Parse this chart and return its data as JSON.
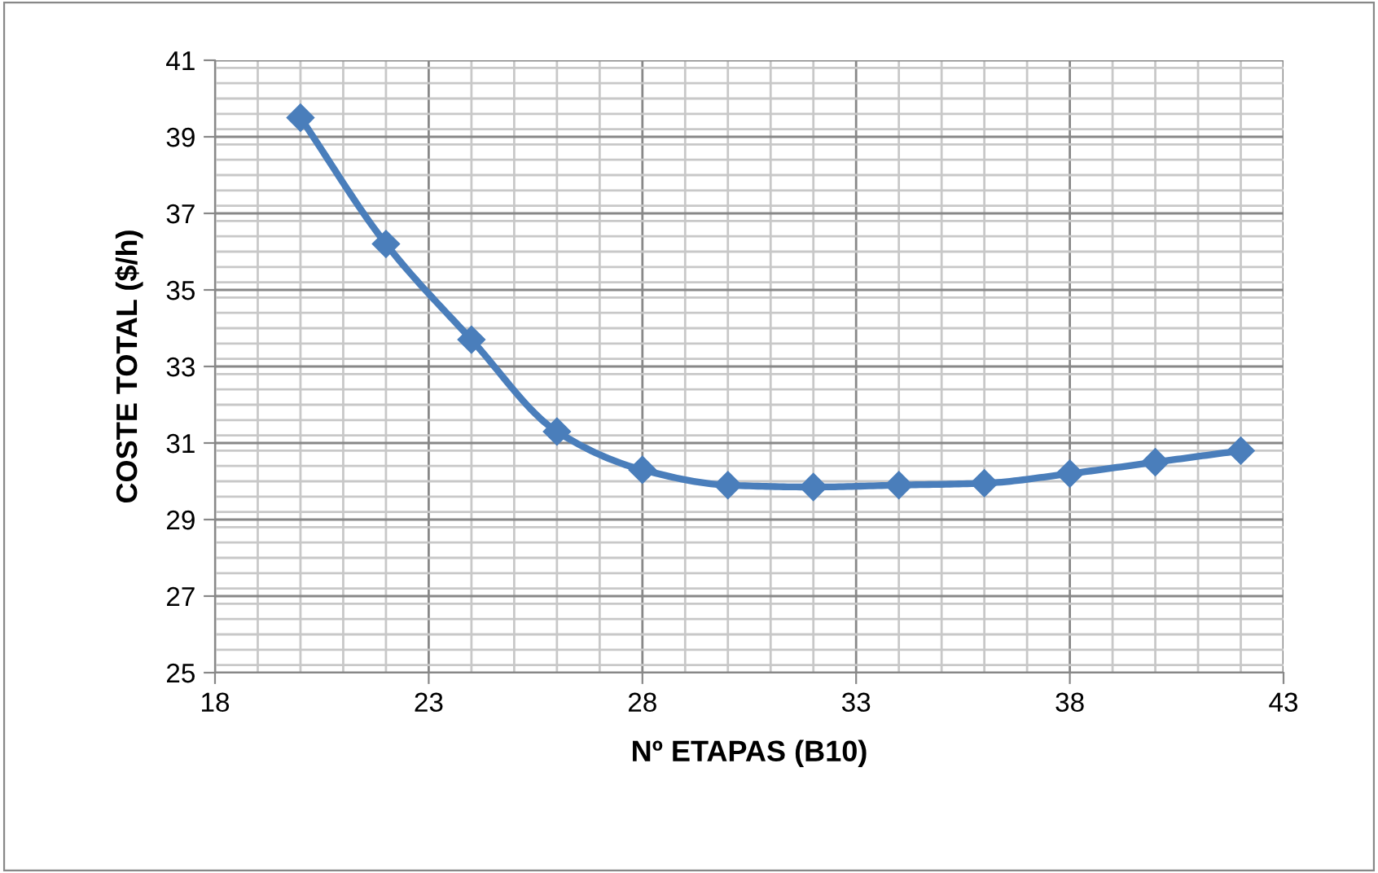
{
  "chart_data": {
    "type": "line",
    "xlabel": "Nº ETAPAS (B10)",
    "ylabel": "COSTE TOTAL ($/h)",
    "x": [
      20,
      22,
      24,
      26,
      28,
      30,
      32,
      34,
      36,
      38,
      40,
      42
    ],
    "series": [
      {
        "color": "#4a7ebb",
        "values": [
          39.5,
          36.2,
          33.7,
          31.3,
          30.3,
          29.9,
          29.85,
          29.9,
          29.95,
          30.2,
          30.5,
          30.8
        ]
      }
    ],
    "xlim": [
      18,
      43
    ],
    "xticks": [
      18,
      23,
      28,
      33,
      38,
      43
    ],
    "ylim": [
      25,
      41
    ],
    "yticks": [
      25,
      27,
      29,
      31,
      33,
      35,
      37,
      39,
      41
    ],
    "grid": true,
    "legend": false,
    "marker": "diamond",
    "line_style": "solid"
  }
}
